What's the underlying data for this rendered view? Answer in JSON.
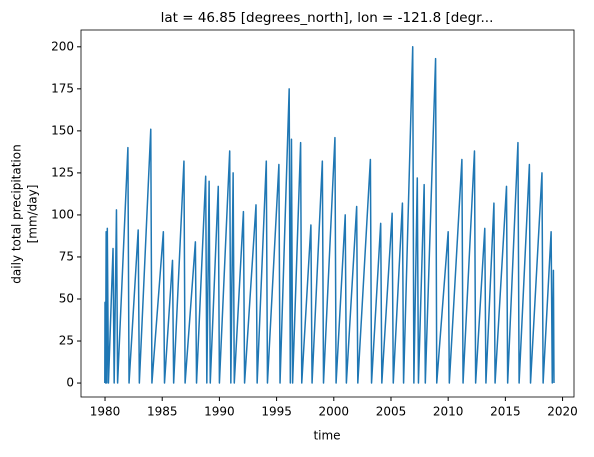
{
  "chart_data": {
    "type": "line",
    "title": "lat = 46.85 [degrees_north], lon = -121.8 [degr...",
    "xlabel": "time",
    "ylabel": [
      "daily total precipitation",
      "[mm/day]"
    ],
    "x": [
      1979.98,
      1980.0,
      1980.05,
      1980.1,
      1980.15,
      1980.2,
      1980.3,
      1980.7,
      1980.8,
      1981.0,
      1981.1,
      1982.0,
      1982.1,
      1982.9,
      1983.0,
      1984.0,
      1984.1,
      1985.1,
      1985.2,
      1985.9,
      1986.0,
      1986.9,
      1987.0,
      1987.9,
      1988.0,
      1988.8,
      1988.9,
      1989.1,
      1989.2,
      1989.9,
      1990.0,
      1990.9,
      1991.0,
      1991.2,
      1991.3,
      1992.1,
      1992.2,
      1993.2,
      1993.3,
      1994.1,
      1994.2,
      1995.2,
      1995.3,
      1996.1,
      1996.2,
      1996.3,
      1996.4,
      1997.1,
      1997.2,
      1998.0,
      1998.1,
      1999.0,
      1999.1,
      2000.1,
      2000.2,
      2001.0,
      2001.1,
      2002.0,
      2002.1,
      2003.2,
      2003.3,
      2004.1,
      2004.2,
      2005.1,
      2005.2,
      2006.0,
      2006.1,
      2006.9,
      2007.0,
      2007.3,
      2007.4,
      2007.9,
      2008.0,
      2008.9,
      2009.0,
      2010.0,
      2010.1,
      2011.2,
      2011.3,
      2012.3,
      2012.4,
      2013.2,
      2013.3,
      2014.0,
      2014.1,
      2015.1,
      2015.2,
      2016.1,
      2016.2,
      2017.1,
      2017.2,
      2018.2,
      2018.3,
      2019.0,
      2019.1,
      2019.2,
      2019.25
    ],
    "series": [
      {
        "color": "#1f77b4",
        "values": [
          0,
          48,
          0,
          90,
          0,
          92,
          0,
          80,
          0,
          103,
          0,
          140,
          0,
          91,
          0,
          151,
          0,
          90,
          0,
          73,
          0,
          132,
          0,
          84,
          0,
          123,
          0,
          120,
          0,
          117,
          0,
          138,
          0,
          125,
          0,
          102,
          0,
          106,
          0,
          132,
          0,
          130,
          0,
          175,
          0,
          145,
          0,
          143,
          0,
          94,
          0,
          132,
          0,
          146,
          0,
          100,
          0,
          105,
          0,
          133,
          0,
          95,
          0,
          101,
          0,
          107,
          0,
          200,
          0,
          122,
          0,
          118,
          0,
          193,
          0,
          90,
          0,
          133,
          0,
          138,
          0,
          92,
          0,
          107,
          0,
          117,
          0,
          143,
          0,
          130,
          0,
          125,
          0,
          90,
          0,
          67,
          0
        ]
      }
    ],
    "xlim": [
      1977.9,
      2021.0
    ],
    "ylim": [
      -8.3,
      210
    ],
    "xticks": [
      1980,
      1985,
      1990,
      1995,
      2000,
      2005,
      2010,
      2015,
      2020
    ],
    "yticks": [
      0,
      25,
      50,
      75,
      100,
      125,
      150,
      175,
      200
    ]
  }
}
